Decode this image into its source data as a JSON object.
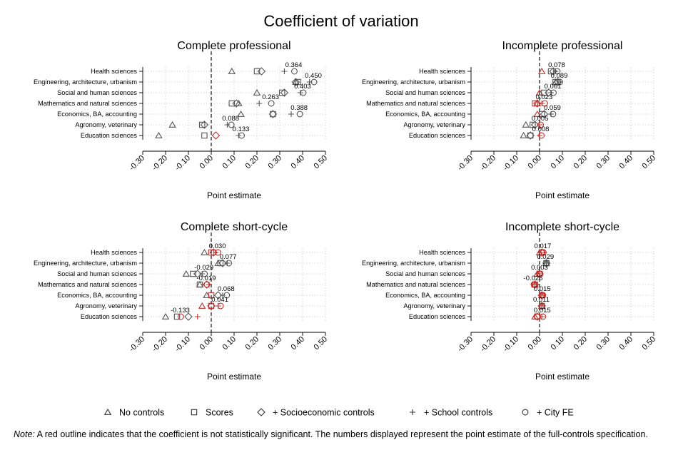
{
  "title": "Coefficient of variation",
  "legend": [
    {
      "marker": "triangle",
      "label": "No controls"
    },
    {
      "marker": "square",
      "label": "Scores"
    },
    {
      "marker": "diamond",
      "label": "+ Socioeconomic controls"
    },
    {
      "marker": "plus",
      "label": "+ School controls"
    },
    {
      "marker": "circle",
      "label": "+ City FE"
    }
  ],
  "note": {
    "prefix": "Note:",
    "text": " A red outline indicates that the coefficient is not statistically significant. The numbers displayed represent the point estimate of the full-controls specification."
  },
  "colors": {
    "significant": "#555555",
    "not_significant": "#c0302b",
    "zero_line": "#333333",
    "grid": "#bfbfbf"
  },
  "chart_data": [
    {
      "type": "scatter",
      "title": "Complete professional",
      "xlabel": "Point estimate",
      "xlim": [
        -0.3,
        0.5
      ],
      "xticks": [
        "-0.30",
        "-0.20",
        "-0.10",
        "0.00",
        "0.10",
        "0.20",
        "0.30",
        "0.40",
        "0.50"
      ],
      "categories": [
        "Health sciences",
        "Engineering, architecture, urbanism",
        "Social and human sciences",
        "Mathematics and natural sciences",
        "Economics, BA, accounting",
        "Agronomy, veterinary",
        "Education sciences"
      ],
      "full_labels": [
        "0.364",
        "0.450",
        "0.403",
        "0.263",
        "0.388",
        "0.088",
        "0.133"
      ],
      "series": [
        {
          "name": "No controls",
          "marker": "triangle",
          "values": [
            0.09,
            0.37,
            0.2,
            0.12,
            0.13,
            -0.17,
            -0.23
          ],
          "not_sig": [
            false,
            false,
            false,
            false,
            false,
            false,
            false
          ]
        },
        {
          "name": "Scores",
          "marker": "square",
          "values": [
            0.2,
            0.38,
            0.31,
            0.09,
            0.27,
            -0.04,
            -0.03
          ],
          "not_sig": [
            false,
            false,
            false,
            false,
            false,
            false,
            false
          ]
        },
        {
          "name": "+ Socioeconomic controls",
          "marker": "diamond",
          "values": [
            0.22,
            0.37,
            0.32,
            0.11,
            0.27,
            -0.03,
            0.02
          ],
          "not_sig": [
            false,
            false,
            false,
            false,
            false,
            false,
            true
          ]
        },
        {
          "name": "+ School controls",
          "marker": "plus",
          "values": [
            0.32,
            0.43,
            0.39,
            0.21,
            0.35,
            0.07,
            0.12
          ],
          "not_sig": [
            false,
            false,
            false,
            false,
            false,
            false,
            false
          ]
        },
        {
          "name": "+ City FE",
          "marker": "circle",
          "values": [
            0.364,
            0.45,
            0.403,
            0.263,
            0.388,
            0.088,
            0.133
          ],
          "not_sig": [
            false,
            false,
            false,
            false,
            false,
            false,
            false
          ]
        }
      ]
    },
    {
      "type": "scatter",
      "title": "Incomplete professional",
      "xlabel": "Point estimate",
      "xlim": [
        -0.3,
        0.5
      ],
      "xticks": [
        "-0.30",
        "-0.20",
        "-0.10",
        "0.00",
        "0.10",
        "0.20",
        "0.30",
        "0.40",
        "0.50"
      ],
      "categories": [
        "Health sciences",
        "Engineering, architecture, urbanism",
        "Social and human sciences",
        "Mathematics and natural sciences",
        "Economics, BA, accounting",
        "Agronomy, veterinary",
        "Education sciences"
      ],
      "full_labels": [
        "0.078",
        "0.089",
        "0.061",
        "0.023",
        "0.059",
        "0.005",
        "0.008"
      ],
      "series": [
        {
          "name": "No controls",
          "marker": "triangle",
          "values": [
            0.01,
            0.07,
            0.0,
            -0.01,
            -0.01,
            -0.06,
            -0.07
          ],
          "not_sig": [
            true,
            false,
            true,
            true,
            true,
            false,
            false
          ]
        },
        {
          "name": "Scores",
          "marker": "square",
          "values": [
            0.05,
            0.07,
            0.02,
            -0.02,
            0.01,
            -0.03,
            -0.04
          ],
          "not_sig": [
            false,
            false,
            false,
            true,
            false,
            false,
            false
          ]
        },
        {
          "name": "+ Socioeconomic controls",
          "marker": "diamond",
          "values": [
            0.06,
            0.08,
            0.04,
            -0.01,
            0.02,
            -0.02,
            -0.04
          ],
          "not_sig": [
            false,
            false,
            false,
            true,
            false,
            false,
            false
          ]
        },
        {
          "name": "+ School controls",
          "marker": "plus",
          "values": [
            0.07,
            0.09,
            0.05,
            0.01,
            0.05,
            0.0,
            0.0
          ],
          "not_sig": [
            false,
            false,
            false,
            true,
            false,
            true,
            true
          ]
        },
        {
          "name": "+ City FE",
          "marker": "circle",
          "values": [
            0.078,
            0.089,
            0.061,
            0.023,
            0.059,
            0.005,
            0.008
          ],
          "not_sig": [
            false,
            false,
            false,
            true,
            false,
            true,
            true
          ]
        }
      ]
    },
    {
      "type": "scatter",
      "title": "Complete short-cycle",
      "xlabel": "Point estimate",
      "xlim": [
        -0.3,
        0.5
      ],
      "xticks": [
        "-0.30",
        "-0.20",
        "-0.10",
        "0.00",
        "0.10",
        "0.20",
        "0.30",
        "0.40",
        "0.50"
      ],
      "categories": [
        "Health sciences",
        "Engineering, architecture, urbanism",
        "Social and human sciences",
        "Mathematics and natural sciences",
        "Economics, BA, accounting",
        "Agronomy, veterinary",
        "Education sciences"
      ],
      "full_labels": [
        "0.030",
        "0.077",
        "-0.029",
        "-0.019",
        "0.068",
        "0.041",
        "-0.133"
      ],
      "series": [
        {
          "name": "No controls",
          "marker": "triangle",
          "values": [
            -0.03,
            0.03,
            -0.11,
            -0.05,
            -0.02,
            -0.04,
            -0.2
          ],
          "not_sig": [
            false,
            false,
            false,
            false,
            false,
            true,
            false
          ]
        },
        {
          "name": "Scores",
          "marker": "square",
          "values": [
            0.0,
            0.04,
            -0.08,
            -0.05,
            0.0,
            0.0,
            -0.15
          ],
          "not_sig": [
            true,
            false,
            false,
            false,
            true,
            true,
            false
          ]
        },
        {
          "name": "+ Socioeconomic controls",
          "marker": "diamond",
          "values": [
            0.01,
            0.05,
            -0.06,
            -0.02,
            0.03,
            0.0,
            -0.1
          ],
          "not_sig": [
            true,
            false,
            false,
            true,
            false,
            true,
            false
          ]
        },
        {
          "name": "+ School controls",
          "marker": "plus",
          "values": [
            0.02,
            0.07,
            -0.04,
            -0.01,
            0.05,
            0.03,
            -0.06
          ],
          "not_sig": [
            true,
            false,
            false,
            true,
            false,
            true,
            true
          ]
        },
        {
          "name": "+ City FE",
          "marker": "circle",
          "values": [
            0.03,
            0.077,
            -0.029,
            -0.019,
            0.068,
            0.041,
            -0.133
          ],
          "not_sig": [
            true,
            false,
            false,
            true,
            false,
            true,
            true
          ]
        }
      ]
    },
    {
      "type": "scatter",
      "title": "Incomplete short-cycle",
      "xlabel": "Point estimate",
      "xlim": [
        -0.3,
        0.5
      ],
      "xticks": [
        "-0.30",
        "-0.20",
        "-0.10",
        "0.00",
        "0.10",
        "0.20",
        "0.30",
        "0.40",
        "0.50"
      ],
      "categories": [
        "Health sciences",
        "Engineering, architecture, urbanism",
        "Social and human sciences",
        "Mathematics and natural sciences",
        "Economics, BA, accounting",
        "Agronomy, veterinary",
        "Education sciences"
      ],
      "full_labels": [
        "0.017",
        "0.029",
        "0.003",
        "-0.025",
        "0.015",
        "0.011",
        "0.015"
      ],
      "series": [
        {
          "name": "No controls",
          "marker": "triangle",
          "values": [
            0.0,
            0.03,
            -0.01,
            -0.02,
            0.01,
            0.01,
            -0.02
          ],
          "not_sig": [
            true,
            false,
            true,
            true,
            true,
            true,
            true
          ]
        },
        {
          "name": "Scores",
          "marker": "square",
          "values": [
            0.01,
            0.03,
            0.0,
            -0.02,
            0.01,
            0.01,
            -0.01
          ],
          "not_sig": [
            true,
            false,
            true,
            true,
            true,
            true,
            true
          ]
        },
        {
          "name": "+ Socioeconomic controls",
          "marker": "diamond",
          "values": [
            0.01,
            0.03,
            0.0,
            -0.02,
            0.01,
            0.01,
            -0.01
          ],
          "not_sig": [
            true,
            false,
            true,
            true,
            true,
            true,
            true
          ]
        },
        {
          "name": "+ School controls",
          "marker": "plus",
          "values": [
            0.02,
            0.03,
            0.0,
            -0.02,
            0.01,
            0.01,
            0.01
          ],
          "not_sig": [
            true,
            false,
            true,
            true,
            true,
            true,
            true
          ]
        },
        {
          "name": "+ City FE",
          "marker": "circle",
          "values": [
            0.017,
            0.029,
            0.003,
            -0.025,
            0.015,
            0.011,
            0.015
          ],
          "not_sig": [
            true,
            false,
            true,
            true,
            true,
            false,
            true
          ]
        }
      ]
    }
  ]
}
